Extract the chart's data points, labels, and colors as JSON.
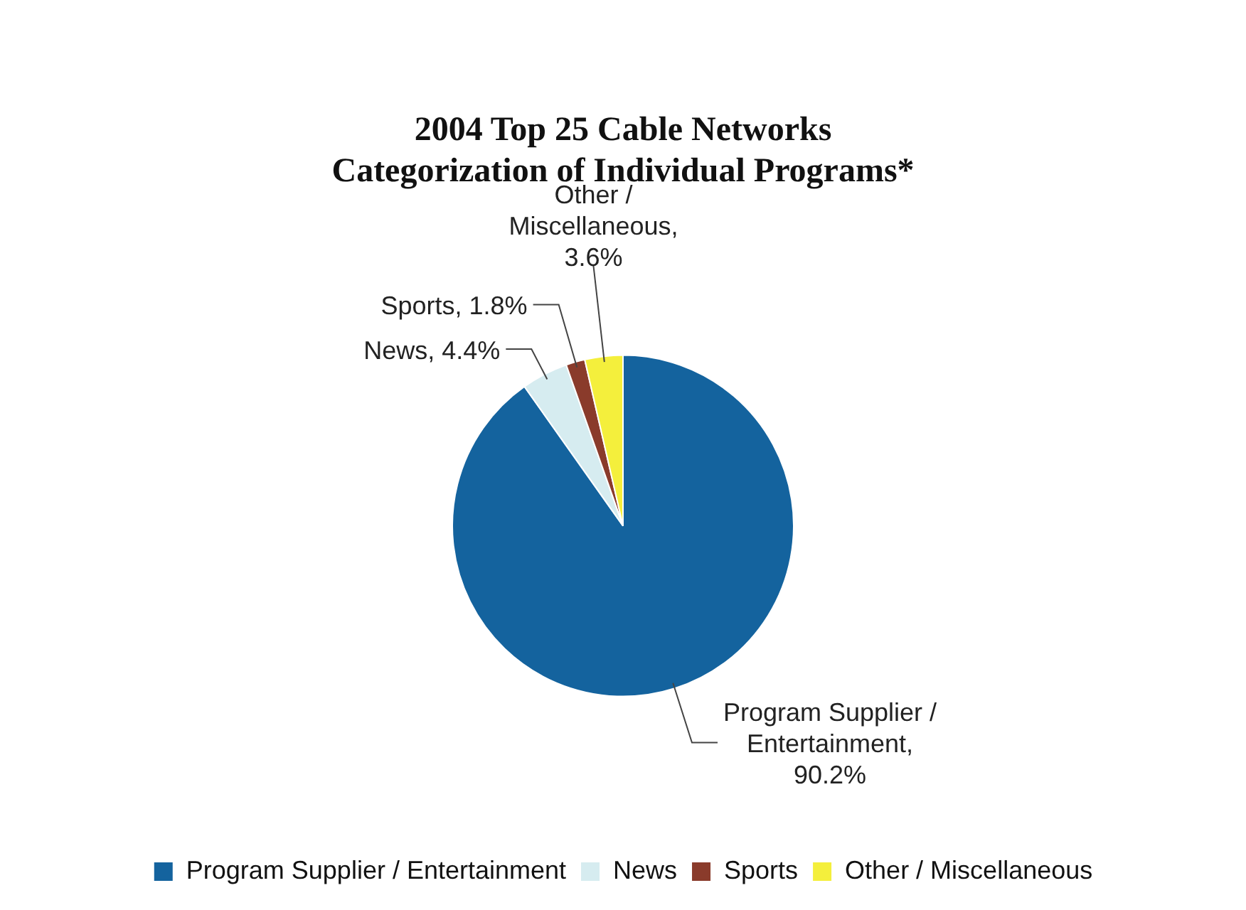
{
  "chart_data": {
    "type": "pie",
    "title": "2004 Top 25 Cable Networks\nCategorization of Individual Programs*",
    "categories": [
      "Program Supplier / Entertainment",
      "News",
      "Sports",
      "Other / Miscellaneous"
    ],
    "values": [
      90.2,
      4.4,
      1.8,
      3.6
    ],
    "colors": [
      "#14639e",
      "#d6ecf0",
      "#8a3b2b",
      "#f4ef3c"
    ],
    "value_labels": [
      "Program Supplier / Entertainment, 90.2%",
      "News, 4.4%",
      "Sports, 1.8%",
      "Other / Miscellaneous, 3.6%"
    ],
    "legend": "bottom"
  }
}
